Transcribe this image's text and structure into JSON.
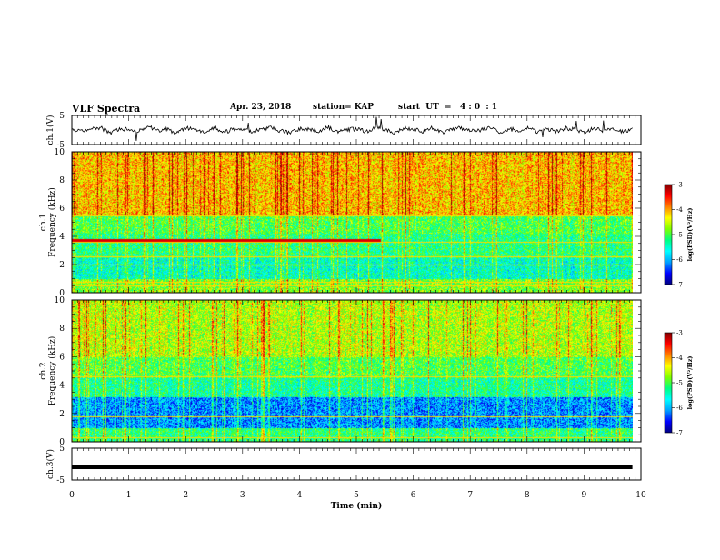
{
  "header": {
    "title": "VLF Spectra",
    "date": "Apr. 23, 2018",
    "station": "station= KAP",
    "start": "start  UT  =   4 : 0  : 1"
  },
  "chart_data": [
    {
      "type": "line",
      "title": "",
      "ylabel": "ch.1(V)",
      "ylim": [
        -5,
        5
      ],
      "yticks": [
        "5",
        "-5"
      ],
      "series": [
        {
          "values": [
            0.3,
            -0.4,
            0.2,
            0.9,
            -1.1,
            0.5,
            0.1,
            -0.6,
            1.2,
            -0.2,
            0.4,
            -1.3,
            0.7,
            0.0,
            -0.5,
            0.8,
            -0.9,
            0.3,
            0.6,
            -0.7,
            0.2,
            1.0,
            -0.4,
            -1.0,
            0.5,
            0.2,
            -0.3,
            0.9,
            -0.8,
            0.1,
            0.4,
            -0.6,
            1.1,
            -0.1,
            -0.9,
            0.6,
            0.3,
            -0.5,
            0.8,
            -1.2,
            0.2,
            0.7,
            -0.3,
            0.0,
            0.9,
            -0.7,
            0.4,
            -0.2,
            1.0,
            -0.8,
            0.3,
            -0.4,
            0.6,
            0.1,
            -1.0,
            0.8,
            -0.3,
            0.5,
            -0.6,
            0.2
          ]
        }
      ]
    },
    {
      "type": "heatmap",
      "ylabel_top": "ch.1",
      "ylabel": "Frequency  (kHz)",
      "ylim": [
        0,
        10
      ],
      "yticks": [
        "0",
        "2",
        "4",
        "6",
        "8",
        "10"
      ],
      "colorbar": {
        "label": "log(PSD)(V²/Hz)",
        "range": [
          -7,
          -3
        ],
        "ticks": [
          "-3",
          "-4",
          "-5",
          "-6",
          "-7"
        ]
      },
      "bands_khz": [
        0.5,
        0.8,
        2.0,
        2.6,
        3.6,
        5.5
      ],
      "strong_line_khz": 3.75
    },
    {
      "type": "heatmap",
      "ylabel_top": "ch.2",
      "ylabel": "Frequency  (kHz)",
      "ylim": [
        0,
        10
      ],
      "yticks": [
        "0",
        "2",
        "4",
        "6",
        "8",
        "10"
      ],
      "colorbar": {
        "label": "log(PSD)(V²/Hz)",
        "range": [
          -7,
          -3
        ],
        "ticks": [
          "-3",
          "-4",
          "-5",
          "-6",
          "-7"
        ]
      },
      "bands_khz": [
        0.3,
        1.8,
        4.6
      ]
    },
    {
      "type": "line",
      "ylabel": "ch.3(V)",
      "ylim": [
        -5,
        5
      ],
      "yticks": [
        "5",
        "-5"
      ],
      "series": [
        {
          "values": [
            -1,
            -1
          ]
        }
      ]
    }
  ],
  "xaxis": {
    "label": "Time  (min)",
    "ticks": [
      "0",
      "1",
      "2",
      "3",
      "4",
      "5",
      "6",
      "7",
      "8",
      "9",
      "10"
    ],
    "xlim": [
      0,
      10
    ],
    "data_end": 9.85
  },
  "colors": {
    "scale": [
      "#000080",
      "#0000ff",
      "#00a0ff",
      "#00ffff",
      "#00ff80",
      "#80ff00",
      "#ffff00",
      "#ff8000",
      "#ff0000",
      "#800000"
    ]
  }
}
